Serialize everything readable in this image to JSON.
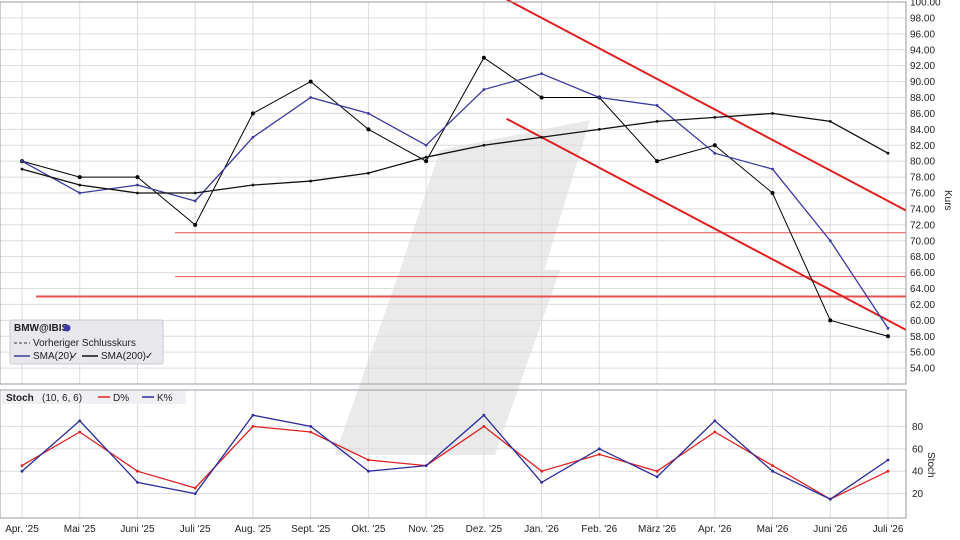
{
  "chart_data": [
    {
      "type": "line",
      "panel": "price",
      "title": "BMW@IBIS",
      "ylabel": "Kurs",
      "ylim": [
        52,
        100
      ],
      "yticks": [
        "54.00",
        "56.00",
        "58.00",
        "60.00",
        "62.00",
        "64.00",
        "66.00",
        "68.00",
        "70.00",
        "72.00",
        "74.00",
        "76.00",
        "78.00",
        "80.00",
        "82.00",
        "84.00",
        "86.00",
        "88.00",
        "90.00",
        "92.00",
        "94.00",
        "96.00",
        "98.00",
        "100.00"
      ],
      "x_tick_labels": [
        "Apr. '25",
        "Mai '25",
        "Juni '25",
        "Juli '25",
        "Aug. '25",
        "Sept. '25",
        "Okt. '25",
        "Nov. '25",
        "Dez. '25",
        "Jan. '26",
        "Feb. '26",
        "März '26",
        "Apr. '26",
        "Mai '26",
        "Juni '26",
        "Juli '26"
      ],
      "legend": [
        "Vorheriger Schlusskurs",
        "SMA(20)",
        "SMA(200)"
      ],
      "grid": true,
      "series": [
        {
          "name": "BMW@IBIS",
          "x": [
            "Apr. '25",
            "Mai '25",
            "Juni '25",
            "Juli '25",
            "Aug. '25",
            "Sept. '25",
            "Okt. '25",
            "Nov. '25",
            "Dez. '25",
            "Jan. '26",
            "Feb. '26",
            "März '26",
            "Apr. '26",
            "Mai '26",
            "Juni '26",
            "Juli '26"
          ],
          "values": [
            80,
            78,
            78,
            72,
            86,
            90,
            84,
            80,
            93,
            88,
            88,
            80,
            82,
            76,
            60,
            58
          ]
        },
        {
          "name": "SMA(20)",
          "x": [
            "Apr. '25",
            "Mai '25",
            "Juni '25",
            "Juli '25",
            "Aug. '25",
            "Sept. '25",
            "Okt. '25",
            "Nov. '25",
            "Dez. '25",
            "Jan. '26",
            "Feb. '26",
            "März '26",
            "Apr. '26",
            "Mai '26",
            "Juni '26",
            "Juli '26"
          ],
          "values": [
            80,
            76,
            77,
            75,
            83,
            88,
            86,
            82,
            89,
            91,
            88,
            87,
            81,
            79,
            70,
            59
          ]
        },
        {
          "name": "SMA(200)",
          "x": [
            "Apr. '25",
            "Mai '25",
            "Juni '25",
            "Juli '25",
            "Aug. '25",
            "Sept. '25",
            "Okt. '25",
            "Nov. '25",
            "Dez. '25",
            "Jan. '26",
            "Feb. '26",
            "März '26",
            "Apr. '26",
            "Mai '26",
            "Juni '26",
            "Juli '26"
          ],
          "values": [
            79,
            77,
            76,
            76,
            77,
            77.5,
            78.5,
            80.5,
            82,
            83,
            84,
            85,
            85.5,
            86,
            85,
            81
          ]
        }
      ],
      "annotations": [
        {
          "type": "trendline",
          "from": [
            "Jan. '26",
            98
          ],
          "to": [
            "Juli '26",
            75
          ]
        },
        {
          "type": "trendline",
          "from": [
            "Jan. '26",
            83
          ],
          "to": [
            "Juli '26",
            60
          ]
        },
        {
          "type": "hline",
          "value": 71
        },
        {
          "type": "hline",
          "value": 65.5
        },
        {
          "type": "hline",
          "value": 63
        }
      ]
    },
    {
      "type": "line",
      "panel": "stochastic",
      "title": "Stoch",
      "params": "(10, 6, 6)",
      "ylabel": "Stoch",
      "ylim": [
        0,
        100
      ],
      "yticks": [
        "20",
        "40",
        "60",
        "80"
      ],
      "grid": true,
      "series": [
        {
          "name": "D%",
          "x": [
            "Apr. '25",
            "Mai '25",
            "Juni '25",
            "Juli '25",
            "Aug. '25",
            "Sept. '25",
            "Okt. '25",
            "Nov. '25",
            "Dez. '25",
            "Jan. '26",
            "Feb. '26",
            "März '26",
            "Apr. '26",
            "Mai '26",
            "Juni '26",
            "Juli '26"
          ],
          "values": [
            45,
            75,
            40,
            25,
            80,
            75,
            50,
            45,
            80,
            40,
            55,
            40,
            75,
            45,
            15,
            40
          ]
        },
        {
          "name": "K%",
          "x": [
            "Apr. '25",
            "Mai '25",
            "Juni '25",
            "Juli '25",
            "Aug. '25",
            "Sept. '25",
            "Okt. '25",
            "Nov. '25",
            "Dez. '25",
            "Jan. '26",
            "Feb. '26",
            "März '26",
            "Apr. '26",
            "Mai '26",
            "Juni '26",
            "Juli '26"
          ],
          "values": [
            40,
            85,
            30,
            20,
            90,
            80,
            40,
            45,
            90,
            30,
            60,
            35,
            85,
            40,
            15,
            50
          ]
        }
      ]
    }
  ],
  "colors": {
    "price_line": "#000000",
    "sma20": "#3a3aa0",
    "sma200": "#111111",
    "trend": "#e02020",
    "hline": "#e85050",
    "stoch_d": "#e02020",
    "stoch_k": "#2c2c9c",
    "grid": "#dcdcdc",
    "watermark": "#d8d8d8"
  },
  "ui": {
    "stoch_label": "Stoch",
    "stoch_params": "(10, 6, 6)",
    "stoch_d_label": "D%",
    "stoch_k_label": "K%",
    "legend_symbol": "BMW@IBIS",
    "legend_prev": "Vorheriger Schlusskurs",
    "legend_sma20": "SMA(20)",
    "legend_sma200": "SMA(200)"
  }
}
